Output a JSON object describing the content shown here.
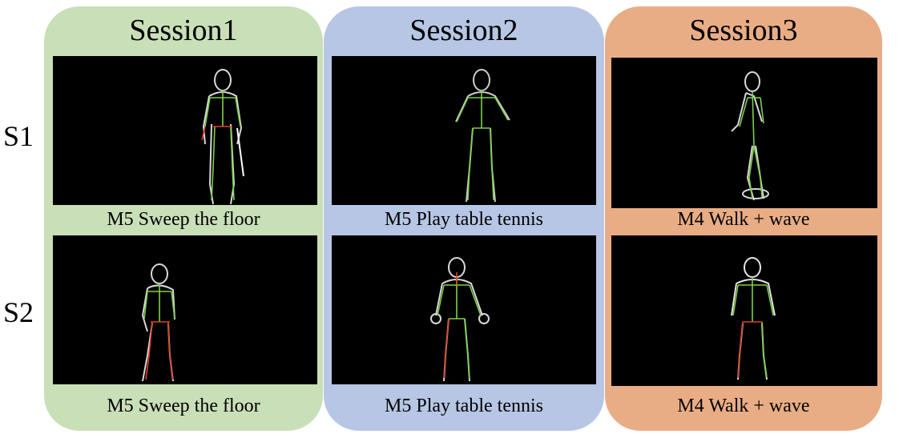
{
  "rows": [
    "S1",
    "S2"
  ],
  "sessions": [
    {
      "title": "Session1",
      "captions": [
        "M5 Sweep the floor",
        "M5 Sweep the floor"
      ]
    },
    {
      "title": "Session2",
      "captions": [
        "M5 Play table tennis",
        "M5 Play table tennis"
      ]
    },
    {
      "title": "Session3",
      "captions": [
        "M4 Walk + wave",
        "M4 Walk + wave"
      ]
    }
  ],
  "colors": {
    "session1_bg": "#c9dfb8",
    "session2_bg": "#b6c6e4",
    "session3_bg": "#e9ad85",
    "frame_bg": "#000000",
    "skeleton_green": "#7cd04a",
    "skeleton_red": "#e0402a"
  }
}
